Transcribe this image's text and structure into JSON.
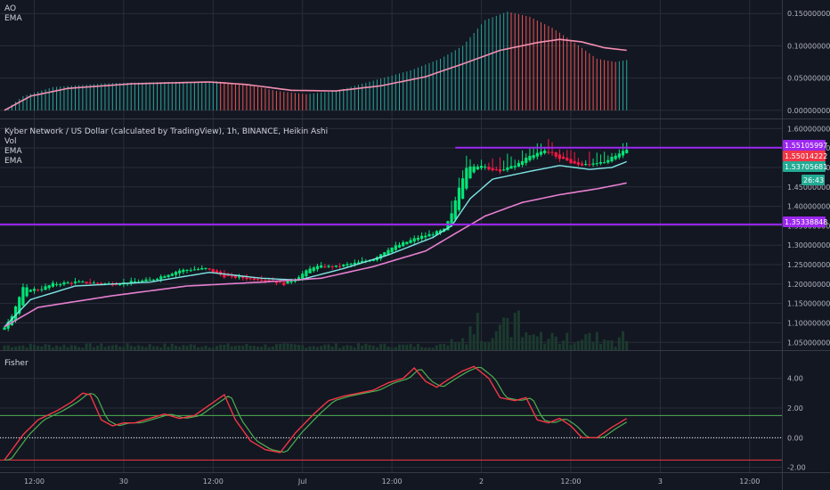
{
  "chart_data": [
    {
      "type": "bar",
      "panel": "ao",
      "legend": [
        "AO",
        "EMA"
      ],
      "y_ticks": [
        "0.15000000",
        "0.10000000",
        "0.05000000",
        "0.00000000"
      ],
      "ylim": [
        -0.003,
        0.16
      ],
      "colors": {
        "up": "#26a69a",
        "down": "#ef5350",
        "ema": "#f48fb1"
      }
    },
    {
      "type": "candlestick",
      "panel": "price",
      "legend": [
        "Kyber Network / US Dollar (calculated by TradingView), 1h, BINANCE, Heikin Ashi",
        "Vol",
        "EMA",
        "EMA"
      ],
      "y_ticks": [
        "1.60000000",
        "1.55000000",
        "1.50000000",
        "1.45000000",
        "1.40000000",
        "1.35000000",
        "1.30000000",
        "1.25000000",
        "1.20000000",
        "1.15000000",
        "1.10000000",
        "1.05000000"
      ],
      "ylim": [
        1.03,
        1.61
      ],
      "horizontal_lines": [
        1.55105997,
        1.35338848
      ],
      "price_tags": [
        {
          "label": "1.55105997",
          "value": 1.55106,
          "color": "#9c27f0"
        },
        {
          "label": "1.55014222",
          "value": 1.55014,
          "color": "#f23645"
        },
        {
          "label": "1.53705681",
          "value": 1.53706,
          "color": "#22ab94"
        },
        {
          "label": "26:43",
          "value": 1.5085,
          "color": "#22ab94"
        },
        {
          "label": "1.35338848",
          "value": 1.35339,
          "color": "#9c27f0"
        }
      ],
      "colors": {
        "up": "#00e676",
        "down": "#ff1744",
        "ema_fast": "#7fe6e6",
        "ema_slow": "#e67fcf",
        "level": "#9c27f0",
        "volume": "#1b3a2e"
      }
    },
    {
      "type": "line",
      "panel": "fisher",
      "legend": [
        "Fisher"
      ],
      "y_ticks": [
        "4.00",
        "2.00",
        "0.00",
        "-2.00"
      ],
      "ylim": [
        -2.2,
        5.0
      ],
      "levels": [
        1.5,
        0,
        -1.5
      ],
      "colors": {
        "fisher": "#f23645",
        "trigger": "#4caf50"
      }
    }
  ],
  "x_axis": {
    "labels": [
      "12:00",
      "30",
      "12:00",
      "Jul",
      "12:00",
      "2",
      "12:00",
      "3",
      "12:00"
    ]
  }
}
